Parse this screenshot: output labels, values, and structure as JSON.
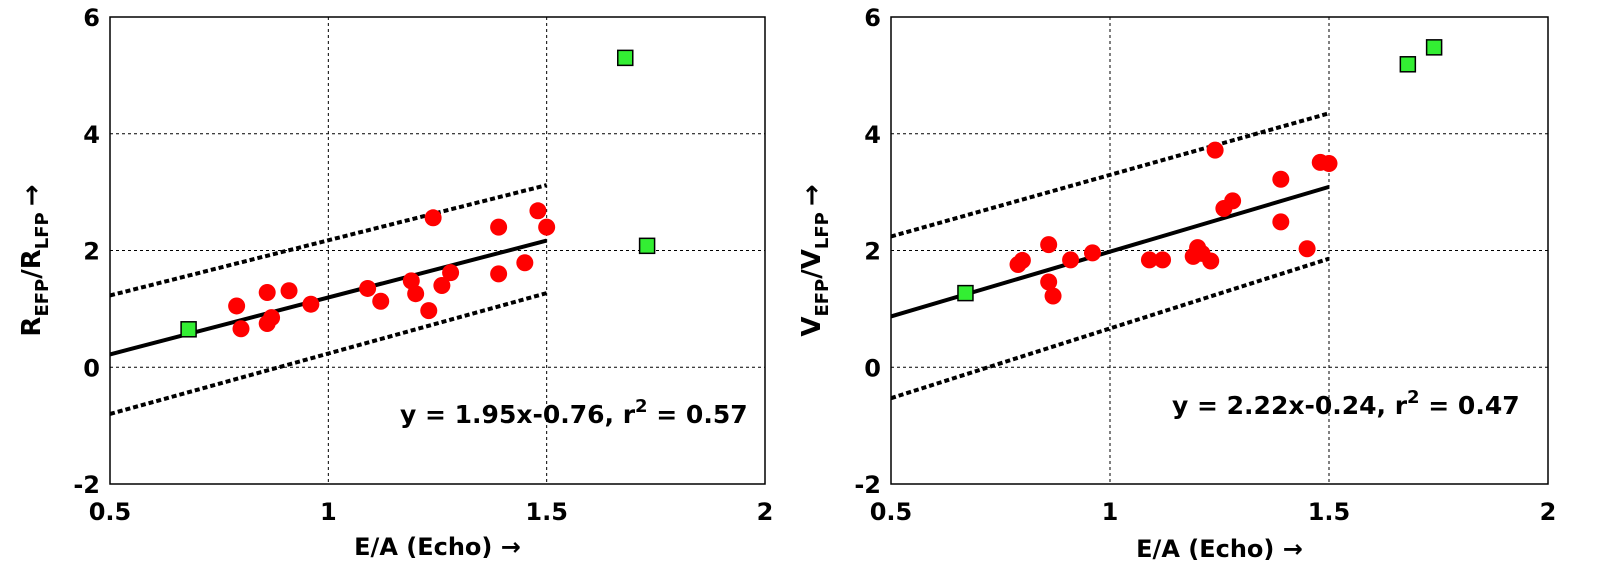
{
  "chart_data": [
    {
      "type": "scatter",
      "xlim": [
        0.5,
        2
      ],
      "ylim": [
        -2,
        6
      ],
      "x_ticks": [
        0.5,
        1,
        1.5,
        2
      ],
      "y_ticks": [
        -2,
        0,
        2,
        4,
        6
      ],
      "x_tick_labels": [
        "0.5",
        "1",
        "1.5",
        "2"
      ],
      "y_tick_labels": [
        "-2",
        "0",
        "2",
        "4",
        "6"
      ],
      "grid": true,
      "xlabel": "E/A (Echo) →",
      "ylabel": {
        "main1": "R",
        "sub1": "EFP",
        "mid": "/R",
        "sub2": "LFP",
        "arrow": "→"
      },
      "annotation": {
        "prefix": "y = 1.95x-0.76, r",
        "sup": "2",
        "suffix": " = 0.57"
      },
      "fit_line": {
        "x": [
          0.5,
          1.5
        ],
        "y": [
          0.22,
          2.17
        ]
      },
      "confidence_upper": {
        "x": [
          0.5,
          1.5
        ],
        "y": [
          1.23,
          3.12
        ]
      },
      "confidence_lower": {
        "x": [
          0.5,
          1.5
        ],
        "y": [
          -0.8,
          1.27
        ]
      },
      "colors": {
        "red_series": "#ff0000",
        "green_series": "#33ee33"
      },
      "series": [
        {
          "marker": "circle",
          "x": [
            0.79,
            0.8,
            0.86,
            0.86,
            0.87,
            0.91,
            0.96,
            1.09,
            1.12,
            1.19,
            1.2,
            1.23,
            1.24,
            1.26,
            1.28,
            1.39,
            1.39,
            1.45,
            1.48,
            1.5
          ],
          "y": [
            1.05,
            0.66,
            1.28,
            0.75,
            0.85,
            1.31,
            1.08,
            1.35,
            1.13,
            1.48,
            1.26,
            0.97,
            2.56,
            1.4,
            1.62,
            2.4,
            1.6,
            1.79,
            2.68,
            2.4
          ]
        },
        {
          "marker": "square",
          "x": [
            0.68,
            1.68,
            1.73
          ],
          "y": [
            0.65,
            5.3,
            2.08
          ]
        }
      ]
    },
    {
      "type": "scatter",
      "xlim": [
        0.5,
        2
      ],
      "ylim": [
        -2,
        6
      ],
      "x_ticks": [
        0.5,
        1,
        1.5,
        2
      ],
      "y_ticks": [
        -2,
        0,
        2,
        4,
        6
      ],
      "x_tick_labels": [
        "0.5",
        "1",
        "1.5",
        "2"
      ],
      "y_tick_labels": [
        "-2",
        "0",
        "2",
        "4",
        "6"
      ],
      "grid": true,
      "xlabel": "E/A (Echo) →",
      "ylabel": {
        "main1": "V",
        "sub1": "EFP",
        "mid": "/V",
        "sub2": "LFP",
        "arrow": "→"
      },
      "annotation": {
        "prefix": "y = 2.22x-0.24, r",
        "sup": "2",
        "suffix": " = 0.47"
      },
      "fit_line": {
        "x": [
          0.5,
          1.5
        ],
        "y": [
          0.87,
          3.09
        ]
      },
      "confidence_upper": {
        "x": [
          0.5,
          1.5
        ],
        "y": [
          2.24,
          4.35
        ]
      },
      "confidence_lower": {
        "x": [
          0.5,
          1.5
        ],
        "y": [
          -0.53,
          1.86
        ]
      },
      "colors": {
        "red_series": "#ff0000",
        "green_series": "#33ee33"
      },
      "series": [
        {
          "marker": "circle",
          "x": [
            0.79,
            0.8,
            0.86,
            0.86,
            0.87,
            0.91,
            0.96,
            1.09,
            1.12,
            1.19,
            1.2,
            1.21,
            1.23,
            1.24,
            1.26,
            1.28,
            1.39,
            1.39,
            1.45,
            1.48,
            1.5
          ],
          "y": [
            1.76,
            1.83,
            2.1,
            1.46,
            1.22,
            1.84,
            1.96,
            1.84,
            1.84,
            1.9,
            2.05,
            1.95,
            1.82,
            3.72,
            2.72,
            2.85,
            3.22,
            2.49,
            2.03,
            3.51,
            3.49
          ]
        },
        {
          "marker": "square",
          "x": [
            0.67,
            1.68,
            1.74
          ],
          "y": [
            1.27,
            5.19,
            5.48
          ]
        }
      ]
    }
  ]
}
